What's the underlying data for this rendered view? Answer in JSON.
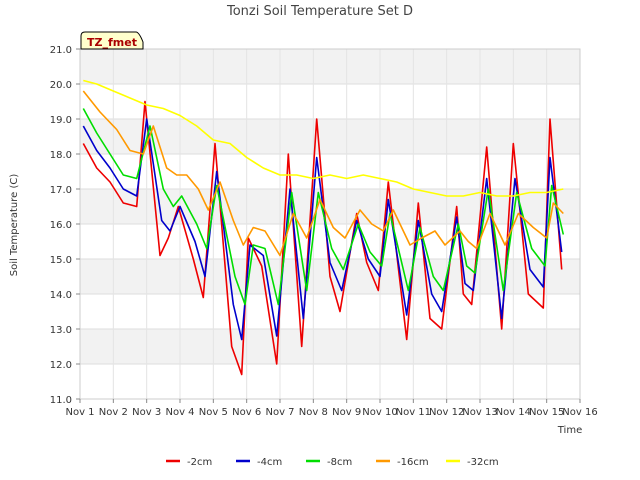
{
  "chart_data": {
    "type": "line",
    "title": "Tonzi Soil Temperature Set D",
    "xlabel": "Time",
    "ylabel": "Soil Temperature (C)",
    "xlim": [
      1,
      16
    ],
    "ylim": [
      11.0,
      21.0
    ],
    "x_ticks": [
      1,
      2,
      3,
      4,
      5,
      6,
      7,
      8,
      9,
      10,
      11,
      12,
      13,
      14,
      15,
      16
    ],
    "x_tick_labels": [
      "Nov 1",
      "Nov 2",
      "Nov 3",
      "Nov 4",
      "Nov 5",
      "Nov 6",
      "Nov 7",
      "Nov 8",
      "Nov 9",
      "Nov 10",
      "Nov 11",
      "Nov 12",
      "Nov 13",
      "Nov 14",
      "Nov 15",
      "Nov 16"
    ],
    "y_ticks": [
      11.0,
      12.0,
      13.0,
      14.0,
      15.0,
      16.0,
      17.0,
      18.0,
      19.0,
      20.0,
      21.0
    ],
    "y_tick_labels": [
      "11.0",
      "12.0",
      "13.0",
      "14.0",
      "15.0",
      "16.0",
      "17.0",
      "18.0",
      "19.0",
      "20.0",
      "21.0"
    ],
    "annotation": "TZ_fmet",
    "legend_position": "bottom-center",
    "series": [
      {
        "name": "-2cm",
        "color": "#ee0000",
        "x": [
          1.1,
          1.5,
          1.9,
          2.3,
          2.7,
          2.95,
          3.4,
          3.65,
          3.95,
          4.4,
          4.7,
          5.05,
          5.55,
          5.85,
          6.05,
          6.45,
          6.9,
          7.25,
          7.65,
          8.1,
          8.5,
          8.8,
          9.3,
          9.6,
          9.95,
          10.25,
          10.8,
          11.15,
          11.5,
          11.85,
          12.3,
          12.5,
          12.75,
          13.2,
          13.65,
          14.0,
          14.45,
          14.9,
          15.1,
          15.45
        ],
        "y": [
          18.3,
          17.6,
          17.2,
          16.6,
          16.5,
          19.5,
          15.1,
          15.6,
          16.5,
          15.0,
          13.9,
          18.3,
          12.5,
          11.7,
          15.6,
          14.8,
          12.0,
          18.0,
          12.5,
          19.0,
          14.5,
          13.5,
          16.3,
          14.9,
          14.1,
          17.2,
          12.7,
          16.6,
          13.3,
          13.0,
          16.5,
          14.0,
          13.7,
          18.2,
          13.0,
          18.3,
          14.0,
          13.6,
          19.0,
          14.7
        ]
      },
      {
        "name": "-4cm",
        "color": "#0000cc",
        "x": [
          1.1,
          1.5,
          1.9,
          2.3,
          2.7,
          3.0,
          3.45,
          3.7,
          4.0,
          4.45,
          4.75,
          5.1,
          5.6,
          5.85,
          6.1,
          6.5,
          6.9,
          7.3,
          7.7,
          8.1,
          8.5,
          8.85,
          9.3,
          9.65,
          10.0,
          10.25,
          10.8,
          11.15,
          11.55,
          11.85,
          12.3,
          12.55,
          12.8,
          13.2,
          13.65,
          14.05,
          14.5,
          14.9,
          15.1,
          15.45
        ],
        "y": [
          18.8,
          18.1,
          17.6,
          17.0,
          16.8,
          19.0,
          16.1,
          15.8,
          16.5,
          15.5,
          14.5,
          17.5,
          13.7,
          12.7,
          15.4,
          15.1,
          12.8,
          17.0,
          13.3,
          17.9,
          14.9,
          14.1,
          16.1,
          15.0,
          14.5,
          16.7,
          13.4,
          16.1,
          14.0,
          13.5,
          16.2,
          14.3,
          14.1,
          17.3,
          13.3,
          17.3,
          14.7,
          14.2,
          17.9,
          15.2
        ]
      },
      {
        "name": "-8cm",
        "color": "#00dd00",
        "x": [
          1.1,
          1.5,
          1.9,
          2.3,
          2.7,
          3.1,
          3.5,
          3.8,
          4.05,
          4.5,
          4.8,
          5.1,
          5.65,
          5.95,
          6.2,
          6.55,
          6.95,
          7.35,
          7.8,
          8.15,
          8.55,
          8.9,
          9.35,
          9.7,
          10.05,
          10.3,
          10.85,
          11.2,
          11.6,
          11.9,
          12.35,
          12.6,
          12.85,
          13.25,
          13.7,
          14.1,
          14.55,
          14.95,
          15.15,
          15.5
        ],
        "y": [
          19.3,
          18.6,
          18.0,
          17.4,
          17.3,
          18.8,
          17.0,
          16.5,
          16.8,
          16.0,
          15.3,
          17.1,
          14.5,
          13.7,
          15.4,
          15.3,
          13.7,
          16.9,
          14.1,
          16.9,
          15.3,
          14.7,
          16.0,
          15.2,
          14.8,
          16.3,
          14.1,
          15.9,
          14.5,
          14.1,
          16.0,
          14.8,
          14.6,
          17.0,
          14.1,
          16.9,
          15.3,
          14.8,
          17.1,
          15.7
        ]
      },
      {
        "name": "-16cm",
        "color": "#ff9900",
        "x": [
          1.1,
          1.6,
          2.1,
          2.5,
          2.9,
          3.2,
          3.6,
          3.9,
          4.2,
          4.55,
          4.85,
          5.2,
          5.6,
          5.9,
          6.2,
          6.55,
          7.0,
          7.4,
          7.8,
          8.2,
          8.6,
          8.95,
          9.4,
          9.75,
          10.1,
          10.4,
          10.9,
          11.25,
          11.65,
          11.95,
          12.4,
          12.65,
          12.9,
          13.3,
          13.75,
          14.15,
          14.6,
          15.0,
          15.2,
          15.5
        ],
        "y": [
          19.8,
          19.2,
          18.7,
          18.1,
          18.0,
          18.8,
          17.6,
          17.4,
          17.4,
          17.0,
          16.4,
          17.2,
          16.1,
          15.4,
          15.9,
          15.8,
          15.1,
          16.3,
          15.6,
          16.7,
          15.9,
          15.6,
          16.4,
          16.0,
          15.8,
          16.4,
          15.4,
          15.6,
          15.8,
          15.4,
          15.8,
          15.5,
          15.3,
          16.3,
          15.4,
          16.3,
          15.9,
          15.6,
          16.6,
          16.3
        ]
      },
      {
        "name": "-32cm",
        "color": "#ffff00",
        "x": [
          1.1,
          1.5,
          2.0,
          2.5,
          3.0,
          3.5,
          4.0,
          4.5,
          5.0,
          5.5,
          6.0,
          6.5,
          7.0,
          7.5,
          8.0,
          8.5,
          9.0,
          9.5,
          10.0,
          10.5,
          11.0,
          11.5,
          12.0,
          12.5,
          13.0,
          13.5,
          14.0,
          14.5,
          15.0,
          15.5
        ],
        "y": [
          20.1,
          20.0,
          19.8,
          19.6,
          19.4,
          19.3,
          19.1,
          18.8,
          18.4,
          18.3,
          17.9,
          17.6,
          17.4,
          17.4,
          17.3,
          17.4,
          17.3,
          17.4,
          17.3,
          17.2,
          17.0,
          16.9,
          16.8,
          16.8,
          16.9,
          16.8,
          16.8,
          16.9,
          16.9,
          17.0
        ]
      }
    ]
  }
}
